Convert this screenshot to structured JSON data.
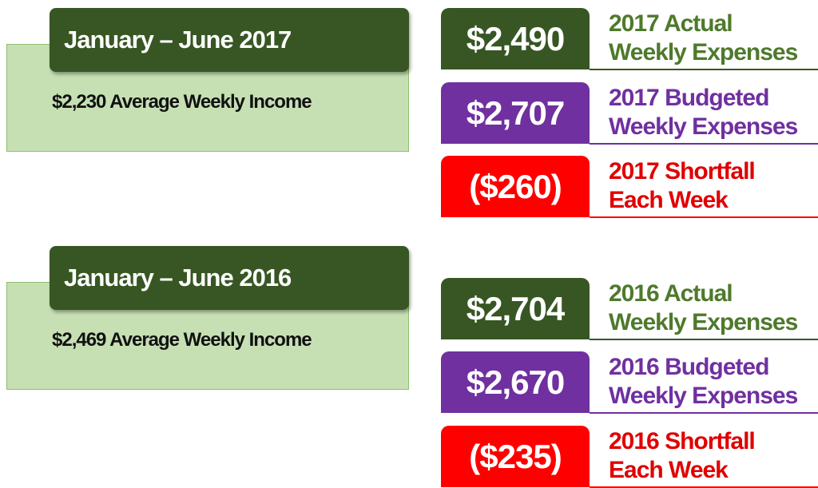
{
  "sections": [
    {
      "header": "January – June 2017",
      "income": "$2,230 Average Weekly Income",
      "items": [
        {
          "amount": "$2,490",
          "label": [
            "2017 Actual",
            "Weekly Expenses"
          ]
        },
        {
          "amount": "$2,707",
          "label": [
            "2017 Budgeted",
            "Weekly Expenses"
          ]
        },
        {
          "amount": "($260)",
          "label": [
            "2017 Shortfall",
            "Each Week"
          ]
        }
      ]
    },
    {
      "header": "January – June 2016",
      "income": "$2,469 Average Weekly Income",
      "items": [
        {
          "amount": "$2,704",
          "label": [
            "2016 Actual",
            "Weekly Expenses"
          ]
        },
        {
          "amount": "$2,670",
          "label": [
            "2016 Budgeted",
            "Weekly Expenses"
          ]
        },
        {
          "amount": "($235)",
          "label": [
            "2016 Shortfall",
            "Each Week"
          ]
        }
      ]
    }
  ]
}
